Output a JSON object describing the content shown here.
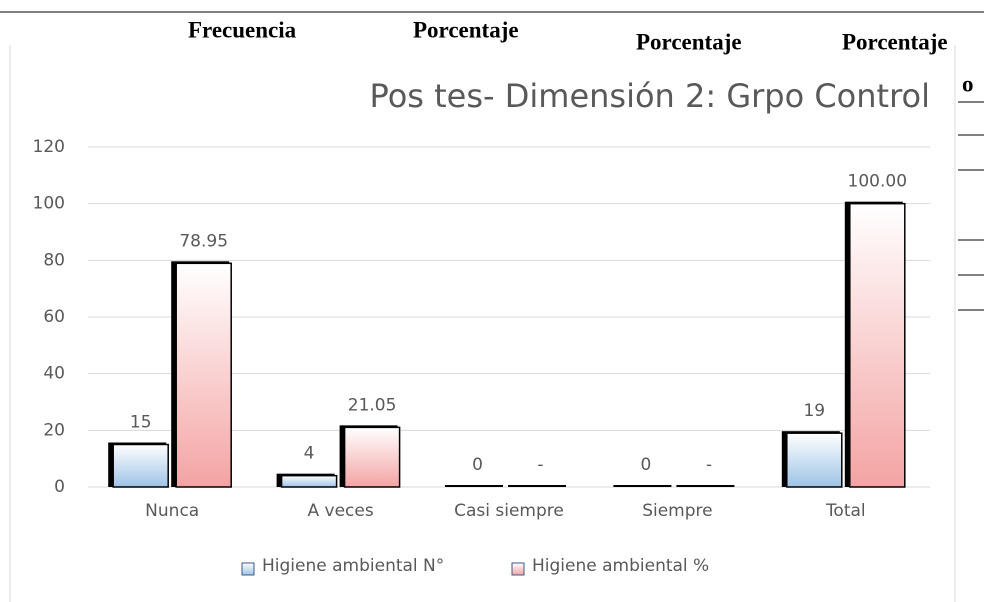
{
  "header": {
    "columns": [
      "Frecuencia",
      "Porcentaje",
      "Porcentaje",
      "Porcentaje",
      "o"
    ]
  },
  "chart_data": {
    "type": "bar",
    "title": "Pos tes- Dimensión 2: Grpo Control",
    "categories": [
      "Nunca",
      "A veces",
      "Casi siempre",
      "Siempre",
      "Total"
    ],
    "series": [
      {
        "name": "Higiene ambiental N°",
        "color": "#9dc3e6",
        "values": [
          15,
          4,
          0,
          0,
          19
        ]
      },
      {
        "name": "Higiene ambiental %",
        "color": "#f4a3a3",
        "values": [
          78.95,
          21.05,
          0,
          0,
          100
        ],
        "value_labels": [
          "78.95",
          "21.05",
          "-",
          "-",
          "100.00"
        ]
      }
    ],
    "ylim": [
      0,
      120
    ],
    "yticks": [
      0,
      20,
      40,
      60,
      80,
      100,
      120
    ],
    "grid": true
  }
}
